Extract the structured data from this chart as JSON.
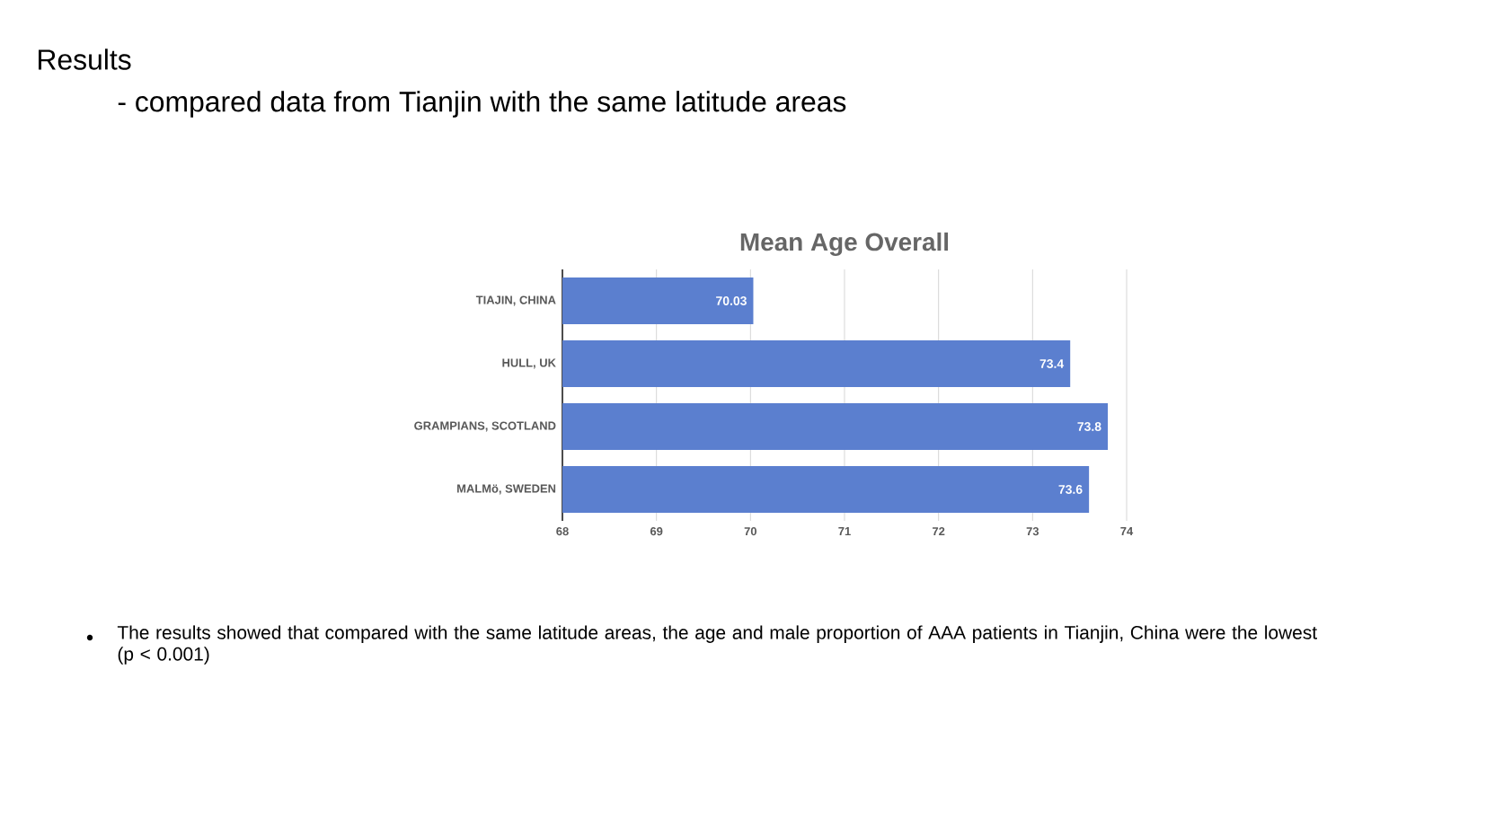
{
  "chart_data": {
    "type": "bar",
    "orientation": "horizontal",
    "title": "Mean Age Overall",
    "annotations": [
      "Results",
      "- compared data from Tianjin with the same latitude areas",
      "The results showed that compared with the same latitude areas, the age and male proportion of AAA patients in Tianjin, China were the lowest (p < 0.001)"
    ],
    "categories": [
      "TIAJIN, CHINA",
      "HULL, UK",
      "GRAMPIANS, SCOTLAND",
      "MALMö, SWEDEN"
    ],
    "values": [
      70.03,
      73.4,
      73.8,
      73.6
    ],
    "color": "#5b7fcf",
    "xlim": [
      68,
      74
    ],
    "xticks": [
      68,
      69,
      70,
      71,
      72,
      73,
      74
    ],
    "grid": "x",
    "data_labels": true
  }
}
